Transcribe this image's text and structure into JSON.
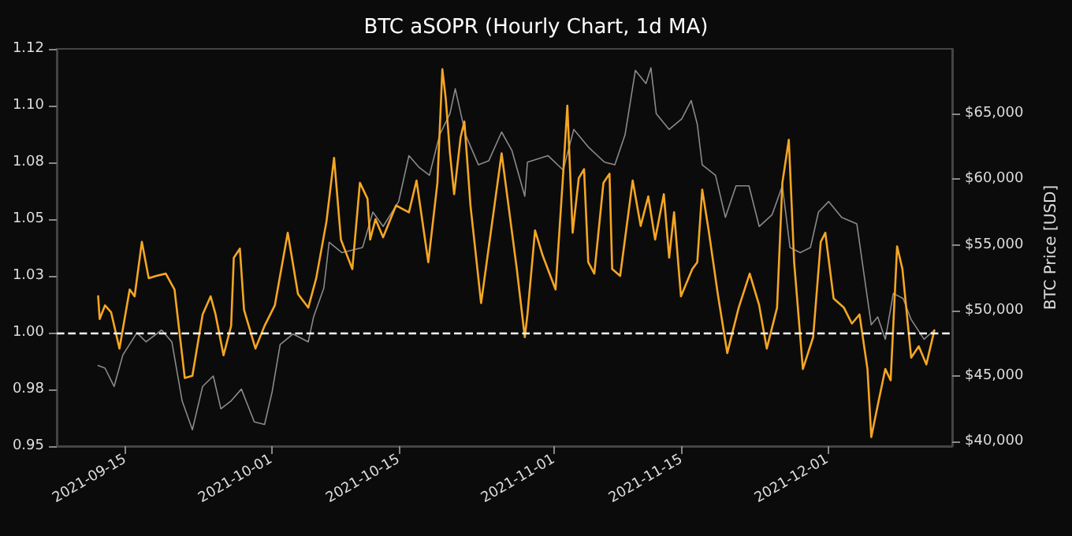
{
  "chart_data": {
    "type": "line",
    "title": "BTC aSOPR (Hourly Chart, 1d MA)",
    "y2label": "BTC Price [USD]",
    "xlim": [
      "2021-09-07T11:00",
      "2021-12-14T16:00"
    ],
    "xticks": [
      "2021-09-15",
      "2021-10-01",
      "2021-10-15",
      "2021-11-01",
      "2021-11-15",
      "2021-12-01"
    ],
    "ylim": [
      0.95,
      1.125
    ],
    "yticks": [
      {
        "value": 0.95,
        "label": "0.95"
      },
      {
        "value": 0.975,
        "label": "0.98"
      },
      {
        "value": 1.0,
        "label": "1.00"
      },
      {
        "value": 1.025,
        "label": "1.03"
      },
      {
        "value": 1.05,
        "label": "1.05"
      },
      {
        "value": 1.075,
        "label": "1.08"
      },
      {
        "value": 1.1,
        "label": "1.10"
      },
      {
        "value": 1.125,
        "label": "1.12"
      }
    ],
    "y2lim": [
      39650,
      69940
    ],
    "y2ticks": [
      {
        "value": 40000,
        "label": "$40,000"
      },
      {
        "value": 45000,
        "label": "$45,000"
      },
      {
        "value": 50000,
        "label": "$50,000"
      },
      {
        "value": 55000,
        "label": "$55,000"
      },
      {
        "value": 60000,
        "label": "$60,000"
      },
      {
        "value": 65000,
        "label": "$65,000"
      }
    ],
    "grid": false,
    "marker": "none",
    "line_style": "solid",
    "ref_lines": [
      {
        "axis": "y",
        "value": 1.0,
        "color": "#ffffff",
        "line_style": "dashed"
      }
    ],
    "series": [
      {
        "axis": "y2",
        "color": "#8a8a8a",
        "x": [
          "2021-09-12T00:00",
          "2021-09-12T18:00",
          "2021-09-13T18:00",
          "2021-09-14T17:00",
          "2021-09-16T06:00",
          "2021-09-17T06:00",
          "2021-09-18T23:00",
          "2021-09-20T02:00",
          "2021-09-21T05:00",
          "2021-09-22T08:00",
          "2021-09-23T11:00",
          "2021-09-24T15:00",
          "2021-09-25T11:00",
          "2021-09-26T14:00",
          "2021-09-27T17:00",
          "2021-09-29T03:00",
          "2021-09-30T06:00",
          "2021-10-01T02:00",
          "2021-10-01T23:00",
          "2021-10-03T09:00",
          "2021-10-05T01:00",
          "2021-10-05T15:00",
          "2021-10-06T18:00",
          "2021-10-07T08:00",
          "2021-10-08T18:00",
          "2021-10-11T00:00",
          "2021-10-12T03:00",
          "2021-10-13T06:00",
          "2021-10-14T23:00",
          "2021-10-16T02:00",
          "2021-10-17T05:00",
          "2021-10-18T08:00",
          "2021-10-19T11:00",
          "2021-10-20T14:00",
          "2021-10-21T04:00",
          "2021-10-22T07:00",
          "2021-10-23T17:00",
          "2021-10-24T20:00",
          "2021-10-26T06:00",
          "2021-10-27T09:00",
          "2021-10-28T19:00",
          "2021-10-29T02:00",
          "2021-10-31T08:00",
          "2021-11-02T00:00",
          "2021-11-03T04:00",
          "2021-11-04T20:00",
          "2021-11-06T13:00",
          "2021-11-07T16:00",
          "2021-11-08T19:00",
          "2021-11-09T22:00",
          "2021-11-11T02:00",
          "2021-11-11T15:00",
          "2021-11-12T05:00",
          "2021-11-13T15:00",
          "2021-11-15T00:00",
          "2021-11-16T01:00",
          "2021-11-16T17:00",
          "2021-11-17T06:00",
          "2021-11-18T17:00",
          "2021-11-19T19:00",
          "2021-11-20T23:00",
          "2021-11-22T09:00",
          "2021-11-23T12:00",
          "2021-11-24T22:00",
          "2021-11-26T01:00",
          "2021-11-26T21:00",
          "2021-11-28T00:00",
          "2021-11-29T03:00",
          "2021-11-30T00:00",
          "2021-12-01T03:00",
          "2021-12-02T13:00",
          "2021-12-04T05:00",
          "2021-12-05T09:00",
          "2021-12-05T19:00",
          "2021-12-06T12:00",
          "2021-12-07T08:00",
          "2021-12-08T05:00",
          "2021-12-09T07:00",
          "2021-12-10T04:00",
          "2021-12-11T14:00",
          "2021-12-12T17:00"
        ],
        "values": [
          45800,
          45600,
          44200,
          46600,
          48300,
          47600,
          48500,
          47600,
          43100,
          40900,
          44200,
          45000,
          42500,
          43100,
          44000,
          41500,
          41300,
          43800,
          47400,
          48200,
          47600,
          49500,
          51700,
          55200,
          54400,
          54800,
          57500,
          56400,
          58300,
          61800,
          60900,
          60300,
          63400,
          65000,
          66900,
          63400,
          61100,
          61400,
          63600,
          62200,
          58700,
          61300,
          61800,
          60700,
          63800,
          62400,
          61300,
          61100,
          63400,
          68300,
          67300,
          68500,
          65000,
          63800,
          64600,
          66000,
          64200,
          61100,
          60300,
          57100,
          59500,
          59500,
          56400,
          57300,
          59500,
          54800,
          54400,
          54800,
          57500,
          58300,
          57100,
          56600,
          50900,
          48900,
          49500,
          47800,
          51300,
          50900,
          49300,
          47800,
          48500
        ]
      },
      {
        "color": "#f5a623",
        "x": [
          "2021-09-12T00:00",
          "2021-09-12T04:00",
          "2021-09-12T18:00",
          "2021-09-13T10:00",
          "2021-09-14T08:00",
          "2021-09-15T11:00",
          "2021-09-16T00:00",
          "2021-09-16T19:00",
          "2021-09-17T13:00",
          "2021-09-18T09:00",
          "2021-09-19T10:00",
          "2021-09-20T09:00",
          "2021-09-21T12:00",
          "2021-09-22T08:00",
          "2021-09-23T11:00",
          "2021-09-24T08:00",
          "2021-09-24T21:00",
          "2021-09-25T18:00",
          "2021-09-26T14:00",
          "2021-09-26T21:00",
          "2021-09-27T13:00",
          "2021-09-28T00:00",
          "2021-09-29T06:00",
          "2021-09-30T06:00",
          "2021-10-01T09:00",
          "2021-10-02T19:00",
          "2021-10-03T22:00",
          "2021-10-05T01:00",
          "2021-10-05T22:00",
          "2021-10-07T01:00",
          "2021-10-07T21:00",
          "2021-10-08T15:00",
          "2021-10-09T21:00",
          "2021-10-10T17:00",
          "2021-10-11T13:00",
          "2021-10-11T20:00",
          "2021-10-12T10:00",
          "2021-10-13T06:00",
          "2021-10-14T16:00",
          "2021-10-16T02:00",
          "2021-10-16T22:00",
          "2021-10-18T05:00",
          "2021-10-19T05:00",
          "2021-10-19T18:00",
          "2021-10-20T03:00",
          "2021-10-20T14:00",
          "2021-10-21T01:00",
          "2021-10-21T18:00",
          "2021-10-22T04:00",
          "2021-10-22T20:00",
          "2021-10-24T00:00",
          "2021-10-26T06:00",
          "2021-10-27T22:00",
          "2021-10-28T19:00",
          "2021-10-29T02:00",
          "2021-10-29T22:00",
          "2021-10-30T18:00",
          "2021-11-01T04:00",
          "2021-11-02T00:00",
          "2021-11-02T11:00",
          "2021-11-03T01:00",
          "2021-11-03T17:00",
          "2021-11-04T07:00",
          "2021-11-04T18:00",
          "2021-11-05T10:00",
          "2021-11-06T10:00",
          "2021-11-07T02:00",
          "2021-11-07T09:00",
          "2021-11-08T06:00",
          "2021-11-09T15:00",
          "2021-11-10T12:00",
          "2021-11-11T08:00",
          "2021-11-12T02:00",
          "2021-11-13T01:00",
          "2021-11-13T15:00",
          "2021-11-14T04:00",
          "2021-11-14T22:00",
          "2021-11-16T04:00",
          "2021-11-16T17:00",
          "2021-11-17T06:00",
          "2021-11-17T23:00",
          "2021-11-18T23:00",
          "2021-11-20T00:00",
          "2021-11-21T06:00",
          "2021-11-22T11:00",
          "2021-11-23T12:00",
          "2021-11-24T08:00",
          "2021-11-25T11:00",
          "2021-11-26T01:00",
          "2021-11-26T18:00",
          "2021-11-27T08:00",
          "2021-11-28T07:00",
          "2021-11-29T10:00",
          "2021-11-30T06:00",
          "2021-11-30T18:00",
          "2021-12-01T16:00",
          "2021-12-02T19:00",
          "2021-12-03T16:00",
          "2021-12-04T12:00",
          "2021-12-05T09:00",
          "2021-12-05T19:00",
          "2021-12-06T12:00",
          "2021-12-07T08:00",
          "2021-12-07T22:00",
          "2021-12-08T15:00",
          "2021-12-09T05:00",
          "2021-12-10T04:00",
          "2021-12-11T00:00",
          "2021-12-11T20:00",
          "2021-12-12T17:00"
        ],
        "values": [
          1.016,
          1.006,
          1.012,
          1.009,
          0.993,
          1.019,
          1.016,
          1.04,
          1.024,
          1.025,
          1.026,
          1.019,
          0.98,
          0.981,
          1.008,
          1.016,
          1.008,
          0.99,
          1.003,
          1.033,
          1.037,
          1.01,
          0.993,
          1.003,
          1.012,
          1.044,
          1.017,
          1.011,
          1.024,
          1.049,
          1.077,
          1.041,
          1.028,
          1.066,
          1.059,
          1.041,
          1.05,
          1.042,
          1.056,
          1.053,
          1.067,
          1.031,
          1.066,
          1.116,
          1.103,
          1.079,
          1.061,
          1.086,
          1.093,
          1.056,
          1.013,
          1.079,
          1.028,
          0.998,
          1.008,
          1.045,
          1.034,
          1.019,
          1.07,
          1.1,
          1.044,
          1.068,
          1.072,
          1.031,
          1.026,
          1.066,
          1.07,
          1.028,
          1.025,
          1.067,
          1.047,
          1.06,
          1.041,
          1.061,
          1.033,
          1.053,
          1.016,
          1.028,
          1.031,
          1.063,
          1.045,
          1.017,
          0.991,
          1.011,
          1.026,
          1.012,
          0.993,
          1.011,
          1.066,
          1.085,
          1.031,
          0.984,
          0.998,
          1.04,
          1.044,
          1.015,
          1.011,
          1.004,
          1.008,
          0.984,
          0.954,
          0.968,
          0.984,
          0.979,
          1.038,
          1.028,
          0.989,
          0.994,
          0.986,
          1.001
        ]
      }
    ]
  }
}
